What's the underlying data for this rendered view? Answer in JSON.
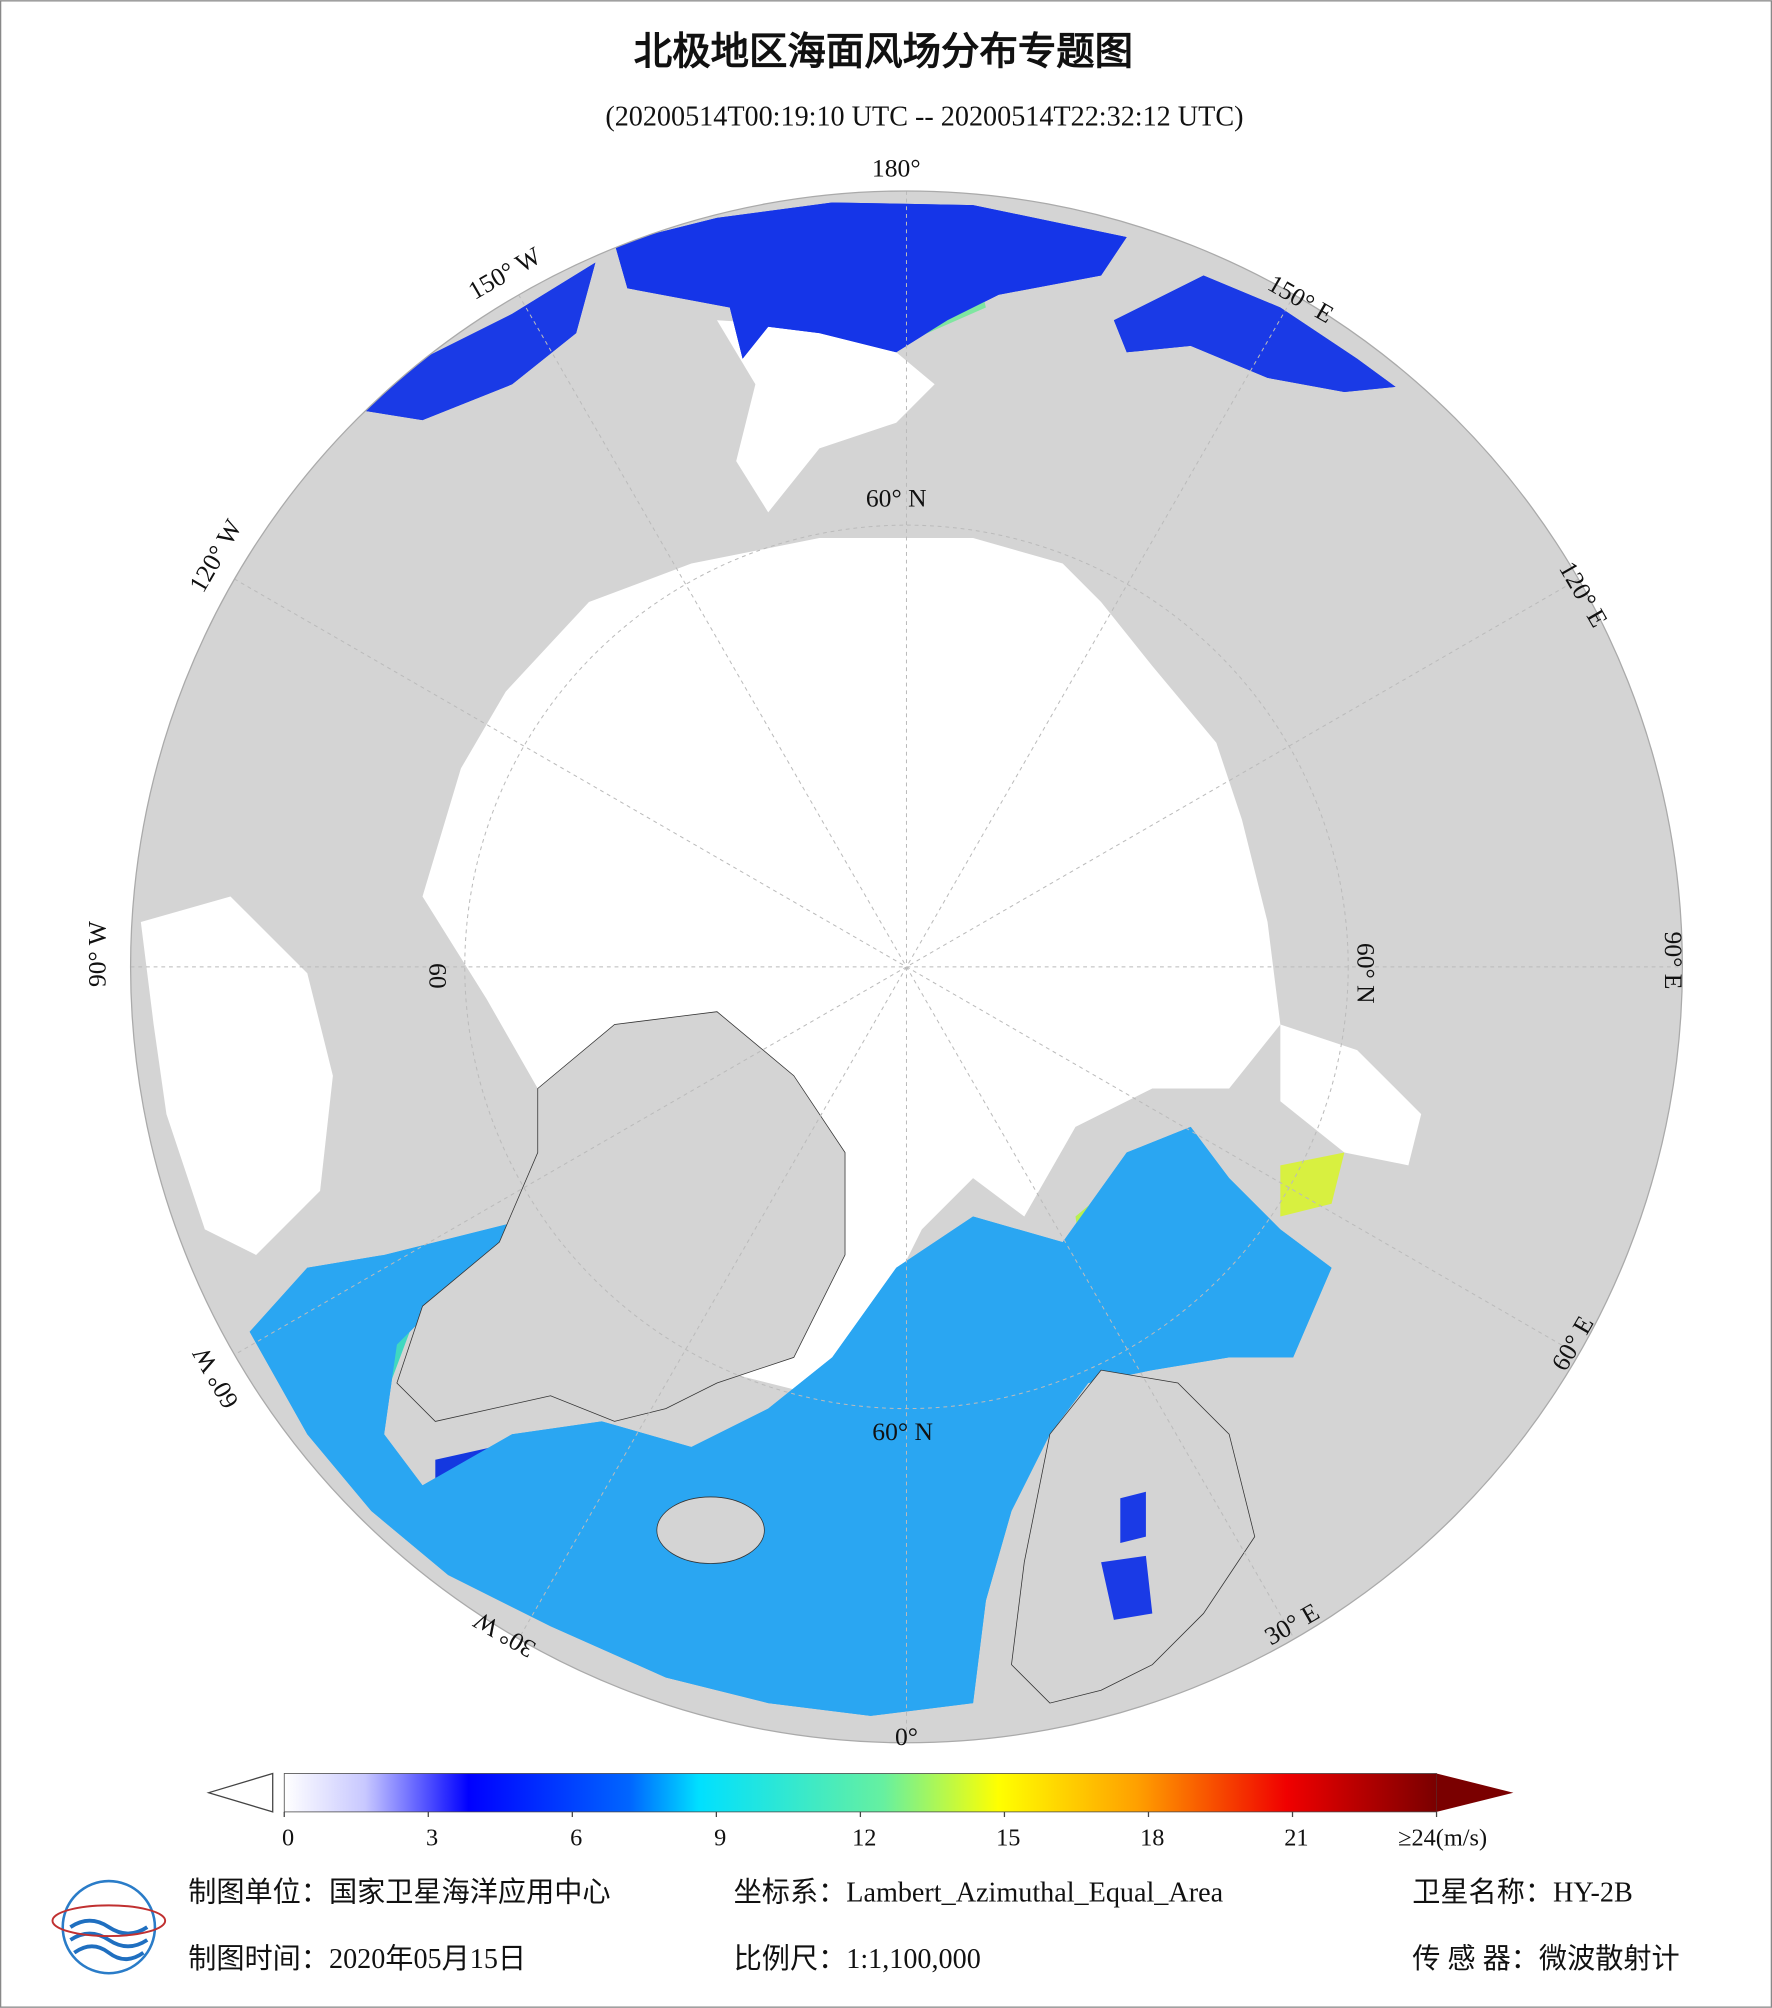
{
  "title": "北极地区海面风场分布专题图",
  "subtitle": "(20200514T00:19:10 UTC -- 20200514T22:32:12 UTC)",
  "map": {
    "longitude_labels": [
      "180°",
      "150° W",
      "150° E",
      "120° W",
      "120° E",
      "90° W",
      "90° E",
      "60° W",
      "60° E",
      "30° W",
      "30° E",
      "0°"
    ],
    "latitude_labels": [
      "60° N",
      "60° N",
      "60° N",
      "60"
    ]
  },
  "colorbar": {
    "range": [
      0,
      24
    ],
    "ticks": [
      0,
      3,
      6,
      9,
      12,
      15,
      18,
      21,
      {
        "value": 24,
        "label": "≥24(m/s)"
      }
    ]
  },
  "footer": {
    "unit": "制图单位：国家卫星海洋应用中心",
    "coordinate_system": "坐标系：Lambert_Azimuthal_Equal_Area",
    "satellite": "卫星名称：HY-2B",
    "date": "制图时间：2020年05月15日",
    "scale": "比例尺：1:1,100,000",
    "sensor": "传 感 器：微波散射计"
  }
}
